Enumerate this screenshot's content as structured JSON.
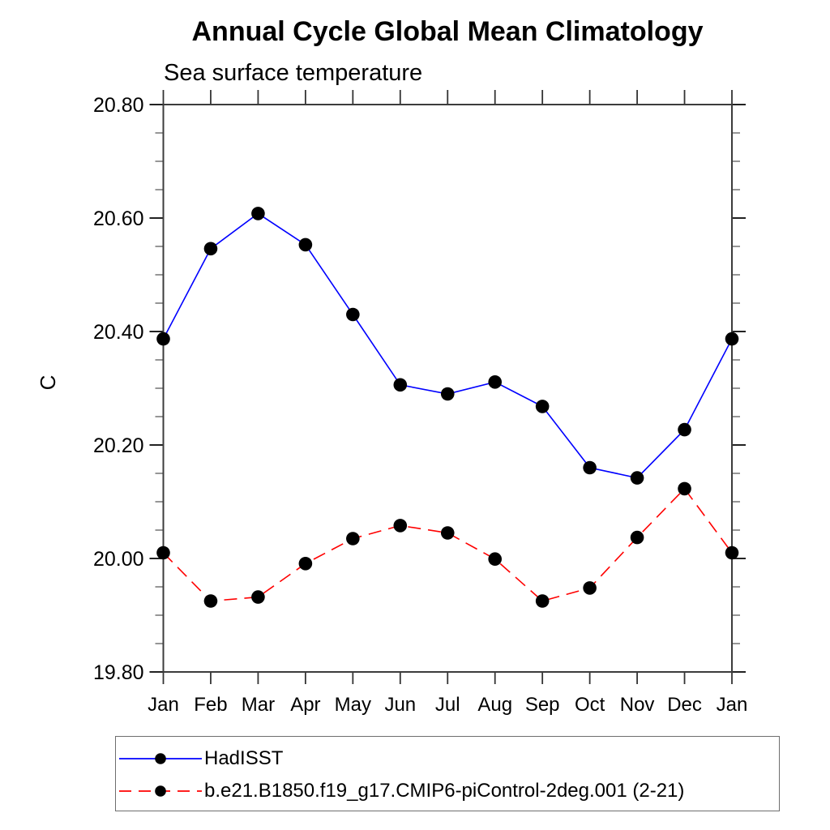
{
  "header": {
    "title": "Annual Cycle Global Mean Climatology",
    "subtitle": "Sea surface temperature"
  },
  "chart_data": {
    "type": "line",
    "title": "Annual Cycle Global Mean Climatology",
    "subtitle": "Sea surface temperature",
    "xlabel": "",
    "ylabel": "C",
    "categories": [
      "Jan",
      "Feb",
      "Mar",
      "Apr",
      "May",
      "Jun",
      "Jul",
      "Aug",
      "Sep",
      "Oct",
      "Nov",
      "Dec",
      "Jan"
    ],
    "ylim": [
      19.8,
      20.8
    ],
    "ytick_labels": [
      "19.80",
      "20.00",
      "20.20",
      "20.40",
      "20.60",
      "20.80"
    ],
    "ytick_major_interval": 0.2,
    "ytick_minor_interval": 0.05,
    "grid": false,
    "legend_position": "bottom-left",
    "marker_color": "#000000",
    "axis_color": "#3c3c3c",
    "series": [
      {
        "name": "HadISST",
        "color": "#0000ff",
        "line_style": "solid",
        "marker": "filled-circle",
        "values": [
          20.387,
          20.546,
          20.608,
          20.553,
          20.43,
          20.306,
          20.29,
          20.311,
          20.268,
          20.16,
          20.142,
          20.227,
          20.387
        ]
      },
      {
        "name": "b.e21.B1850.f19_g17.CMIP6-piControl-2deg.001 (2-21)",
        "color": "#ff0000",
        "line_style": "dashed",
        "marker": "filled-circle",
        "values": [
          20.01,
          19.925,
          19.932,
          19.991,
          20.035,
          20.058,
          20.045,
          19.999,
          19.925,
          19.948,
          20.037,
          20.123,
          20.01
        ]
      }
    ]
  }
}
